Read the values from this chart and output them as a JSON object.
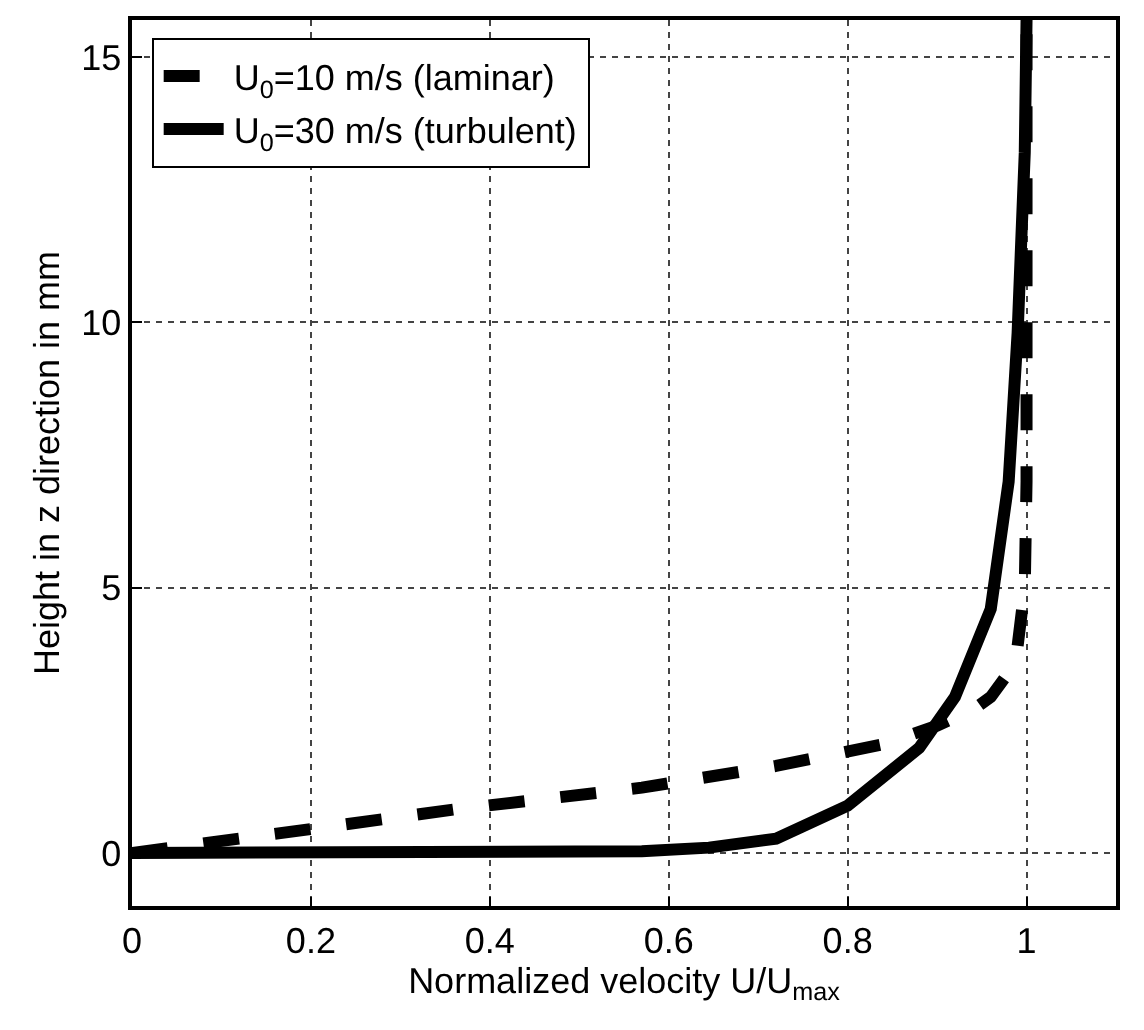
{
  "chart_data": {
    "type": "line",
    "xlabel": "Normalized velocity U/U$_{max}$",
    "ylabel": "Height in z direction in mm",
    "xlim": [
      0,
      1.1
    ],
    "ylim": [
      -1,
      15.7
    ],
    "xticks": [
      0,
      0.2,
      0.4,
      0.6,
      0.8,
      1
    ],
    "yticks": [
      0,
      5,
      10,
      15
    ],
    "grid": true,
    "legend": "top left",
    "marker": "none",
    "series": [
      {
        "name": "U$_{0}$=10 m/s (laminar)",
        "color": "#000000",
        "line_style": "dashed",
        "x": [
          0,
          0.088,
          0.2,
          0.36,
          0.57,
          0.72,
          0.84,
          0.9,
          0.94,
          0.96,
          0.98,
          0.99,
          0.998,
          1.0,
          1.0,
          1.0
        ],
        "values": [
          0,
          0.2,
          0.45,
          0.82,
          1.23,
          1.64,
          2.05,
          2.4,
          2.7,
          2.94,
          3.4,
          3.9,
          5.0,
          7.0,
          9.0,
          15.7
        ]
      },
      {
        "name": "U$_{0}$=30 m/s (turbulent)",
        "color": "#000000",
        "line_style": "solid",
        "x": [
          0,
          0.57,
          0.645,
          0.72,
          0.8,
          0.88,
          0.92,
          0.96,
          0.98,
          0.99,
          0.998,
          1.0
        ],
        "values": [
          0,
          0.03,
          0.1,
          0.27,
          0.89,
          1.98,
          2.94,
          4.6,
          7.0,
          9.8,
          13.2,
          15.7
        ]
      }
    ]
  }
}
